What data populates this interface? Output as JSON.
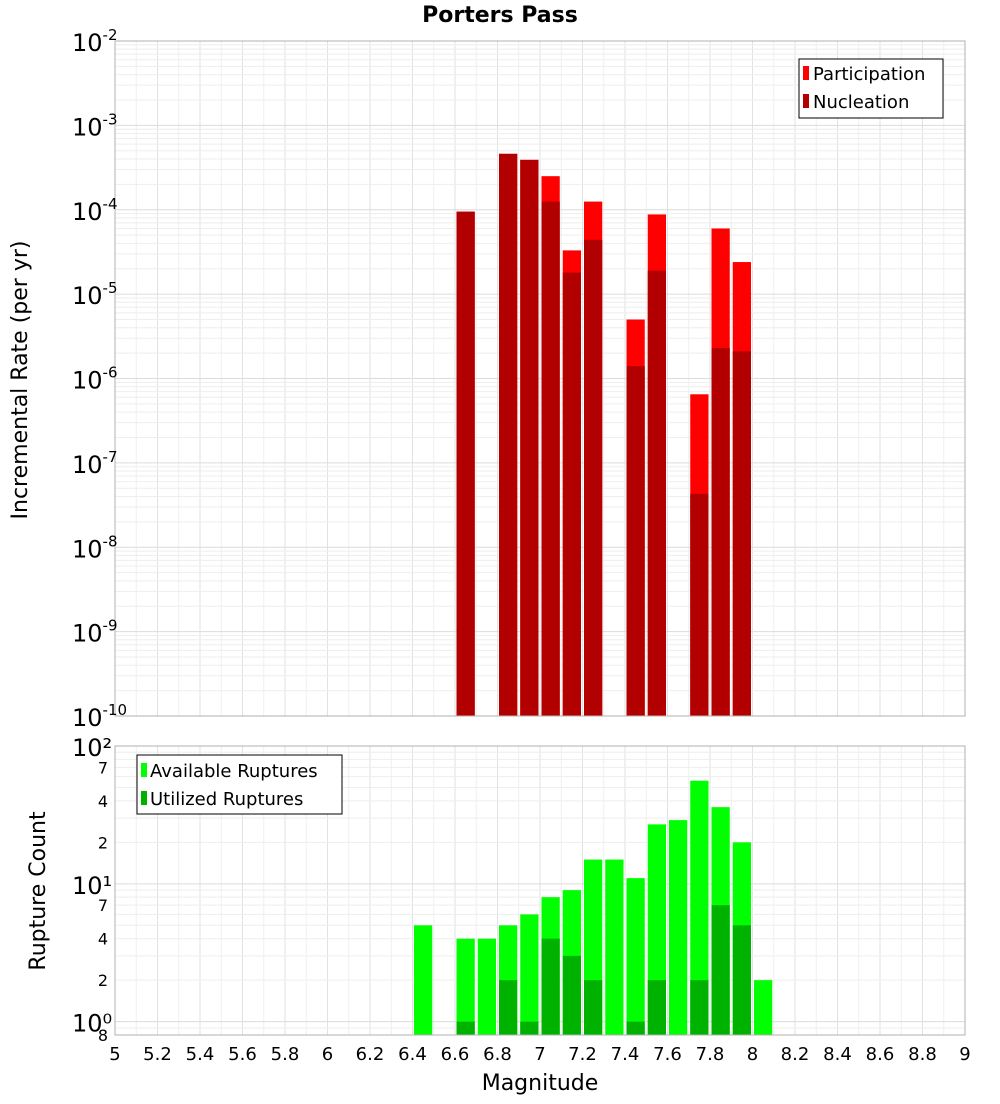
{
  "chart_data": [
    {
      "type": "bar",
      "title": "Porters Pass",
      "xlabel": "",
      "ylabel": "Incremental Rate (per yr)",
      "yscale": "log",
      "ylim": [
        1e-10,
        0.01
      ],
      "xlim": [
        5,
        9
      ],
      "y_tick_labels": [
        "10-10",
        "10-9",
        "10-8",
        "10-7",
        "10-6",
        "10-5",
        "10-4",
        "10-3",
        "10-2"
      ],
      "legend": {
        "position": "top-right"
      },
      "bar_width": 0.1,
      "series": [
        {
          "name": "Participation",
          "color": "#ff0000",
          "x": [
            6.65,
            6.85,
            6.95,
            7.05,
            7.15,
            7.25,
            7.45,
            7.55,
            7.75,
            7.85,
            7.95
          ],
          "values": [
            9.5e-05,
            0.00046,
            0.00039,
            0.00025,
            3.3e-05,
            0.000125,
            5e-06,
            8.8e-05,
            6.5e-07,
            6e-05,
            2.4e-05
          ]
        },
        {
          "name": "Nucleation",
          "color": "#b20000",
          "x": [
            6.65,
            6.85,
            6.95,
            7.05,
            7.15,
            7.25,
            7.45,
            7.55,
            7.75,
            7.85,
            7.95
          ],
          "values": [
            9.5e-05,
            0.00046,
            0.00039,
            0.000125,
            1.8e-05,
            4.4e-05,
            1.4e-06,
            1.9e-05,
            4.3e-08,
            2.3e-06,
            2.1e-06
          ]
        }
      ]
    },
    {
      "type": "bar",
      "xlabel": "Magnitude",
      "ylabel": "Rupture Count",
      "yscale": "log",
      "ylim": [
        0.8,
        100
      ],
      "xlim": [
        5,
        9
      ],
      "x_ticks": [
        "5",
        "5.2",
        "5.4",
        "5.6",
        "5.8",
        "6",
        "6.2",
        "6.4",
        "6.6",
        "6.8",
        "7",
        "7.2",
        "7.4",
        "7.6",
        "7.8",
        "8",
        "8.2",
        "8.4",
        "8.6",
        "8.8",
        "9"
      ],
      "y_major_labels": [
        "10⁰",
        "10¹",
        "10²"
      ],
      "y_minor_labels": [
        "8",
        "2",
        "4",
        "7",
        "2",
        "4",
        "7"
      ],
      "legend": {
        "position": "top-left"
      },
      "bar_width": 0.1,
      "series": [
        {
          "name": "Available Ruptures",
          "color": "#00ff00",
          "x": [
            6.45,
            6.65,
            6.75,
            6.85,
            6.95,
            7.05,
            7.15,
            7.25,
            7.35,
            7.45,
            7.55,
            7.65,
            7.75,
            7.85,
            7.95,
            8.05
          ],
          "values": [
            5,
            4,
            4,
            5,
            6,
            8,
            9,
            15,
            15,
            11,
            27,
            29,
            56,
            36,
            20,
            2
          ]
        },
        {
          "name": "Utilized Ruptures",
          "color": "#00b200",
          "x": [
            6.65,
            6.85,
            6.95,
            7.05,
            7.15,
            7.25,
            7.45,
            7.55,
            7.75,
            7.85,
            7.95
          ],
          "values": [
            1,
            2,
            1,
            4,
            3,
            2,
            1,
            2,
            2,
            7,
            5
          ]
        }
      ]
    }
  ]
}
